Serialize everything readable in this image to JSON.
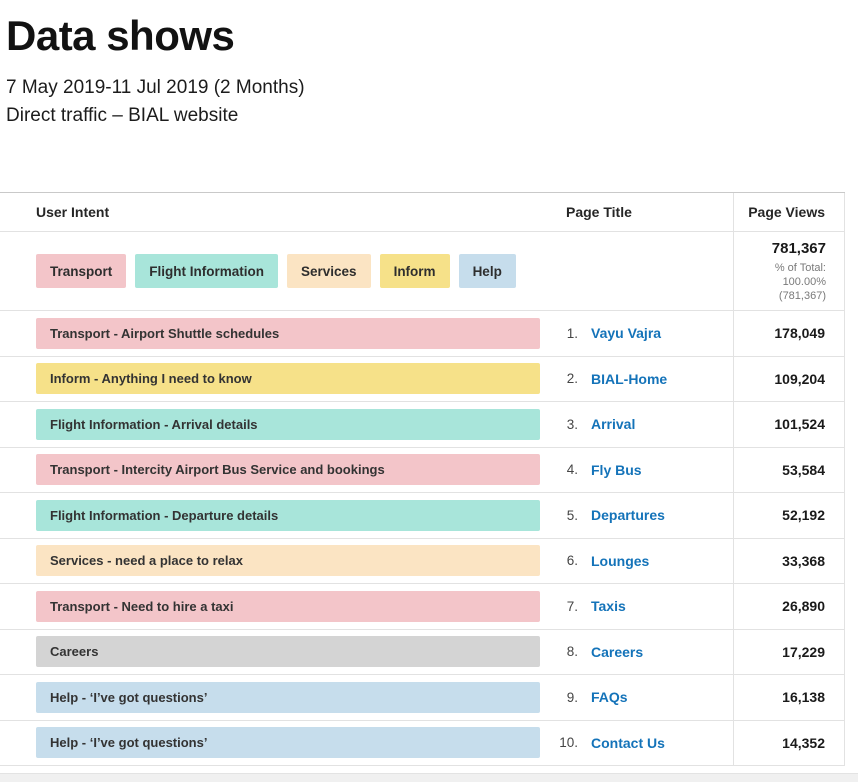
{
  "header": {
    "title": "Data shows",
    "date_range": "7 May 2019-11 Jul 2019 (2 Months)",
    "subtitle": "Direct traffic – BIAL website"
  },
  "table": {
    "columns": {
      "user_intent": "User Intent",
      "page_title": "Page Title",
      "page_views": "Page Views"
    },
    "legend": [
      {
        "label": "Transport",
        "category": "transport"
      },
      {
        "label": "Flight Information",
        "category": "flight"
      },
      {
        "label": "Services",
        "category": "services"
      },
      {
        "label": "Inform",
        "category": "inform"
      },
      {
        "label": "Help",
        "category": "help"
      }
    ],
    "colors": {
      "transport": "#f3c5c9",
      "flight": "#a8e5da",
      "services": "#fbe4c3",
      "inform": "#f6e189",
      "help": "#c6ddec",
      "other": "#d4d4d4",
      "link": "#1473b9"
    },
    "total": {
      "views": "781,367",
      "pct_line1": "% of Total:",
      "pct_line2": "100.00%",
      "pct_line3": "(781,367)"
    },
    "rows": [
      {
        "intent": "Transport - Airport Shuttle schedules",
        "category": "transport",
        "num": "1.",
        "page": "Vayu Vajra",
        "views": "178,049"
      },
      {
        "intent": "Inform - Anything I need to know",
        "category": "inform",
        "num": "2.",
        "page": "BIAL-Home",
        "views": "109,204"
      },
      {
        "intent": "Flight Information - Arrival details",
        "category": "flight",
        "num": "3.",
        "page": "Arrival",
        "views": "101,524"
      },
      {
        "intent": "Transport - Intercity Airport Bus Service and bookings",
        "category": "transport",
        "num": "4.",
        "page": "Fly Bus",
        "views": "53,584"
      },
      {
        "intent": "Flight Information - Departure details",
        "category": "flight",
        "num": "5.",
        "page": "Departures",
        "views": "52,192"
      },
      {
        "intent": "Services - need a place to relax",
        "category": "services",
        "num": "6.",
        "page": "Lounges",
        "views": "33,368"
      },
      {
        "intent": "Transport - Need to hire a taxi",
        "category": "transport",
        "num": "7.",
        "page": "Taxis",
        "views": "26,890"
      },
      {
        "intent": "Careers",
        "category": "other",
        "num": "8.",
        "page": "Careers",
        "views": "17,229"
      },
      {
        "intent": "Help - ‘I’ve got questions’",
        "category": "help",
        "num": "9.",
        "page": "FAQs",
        "views": "16,138"
      },
      {
        "intent": "Help - ‘I’ve got questions’",
        "category": "help",
        "num": "10.",
        "page": "Contact Us",
        "views": "14,352"
      }
    ]
  }
}
